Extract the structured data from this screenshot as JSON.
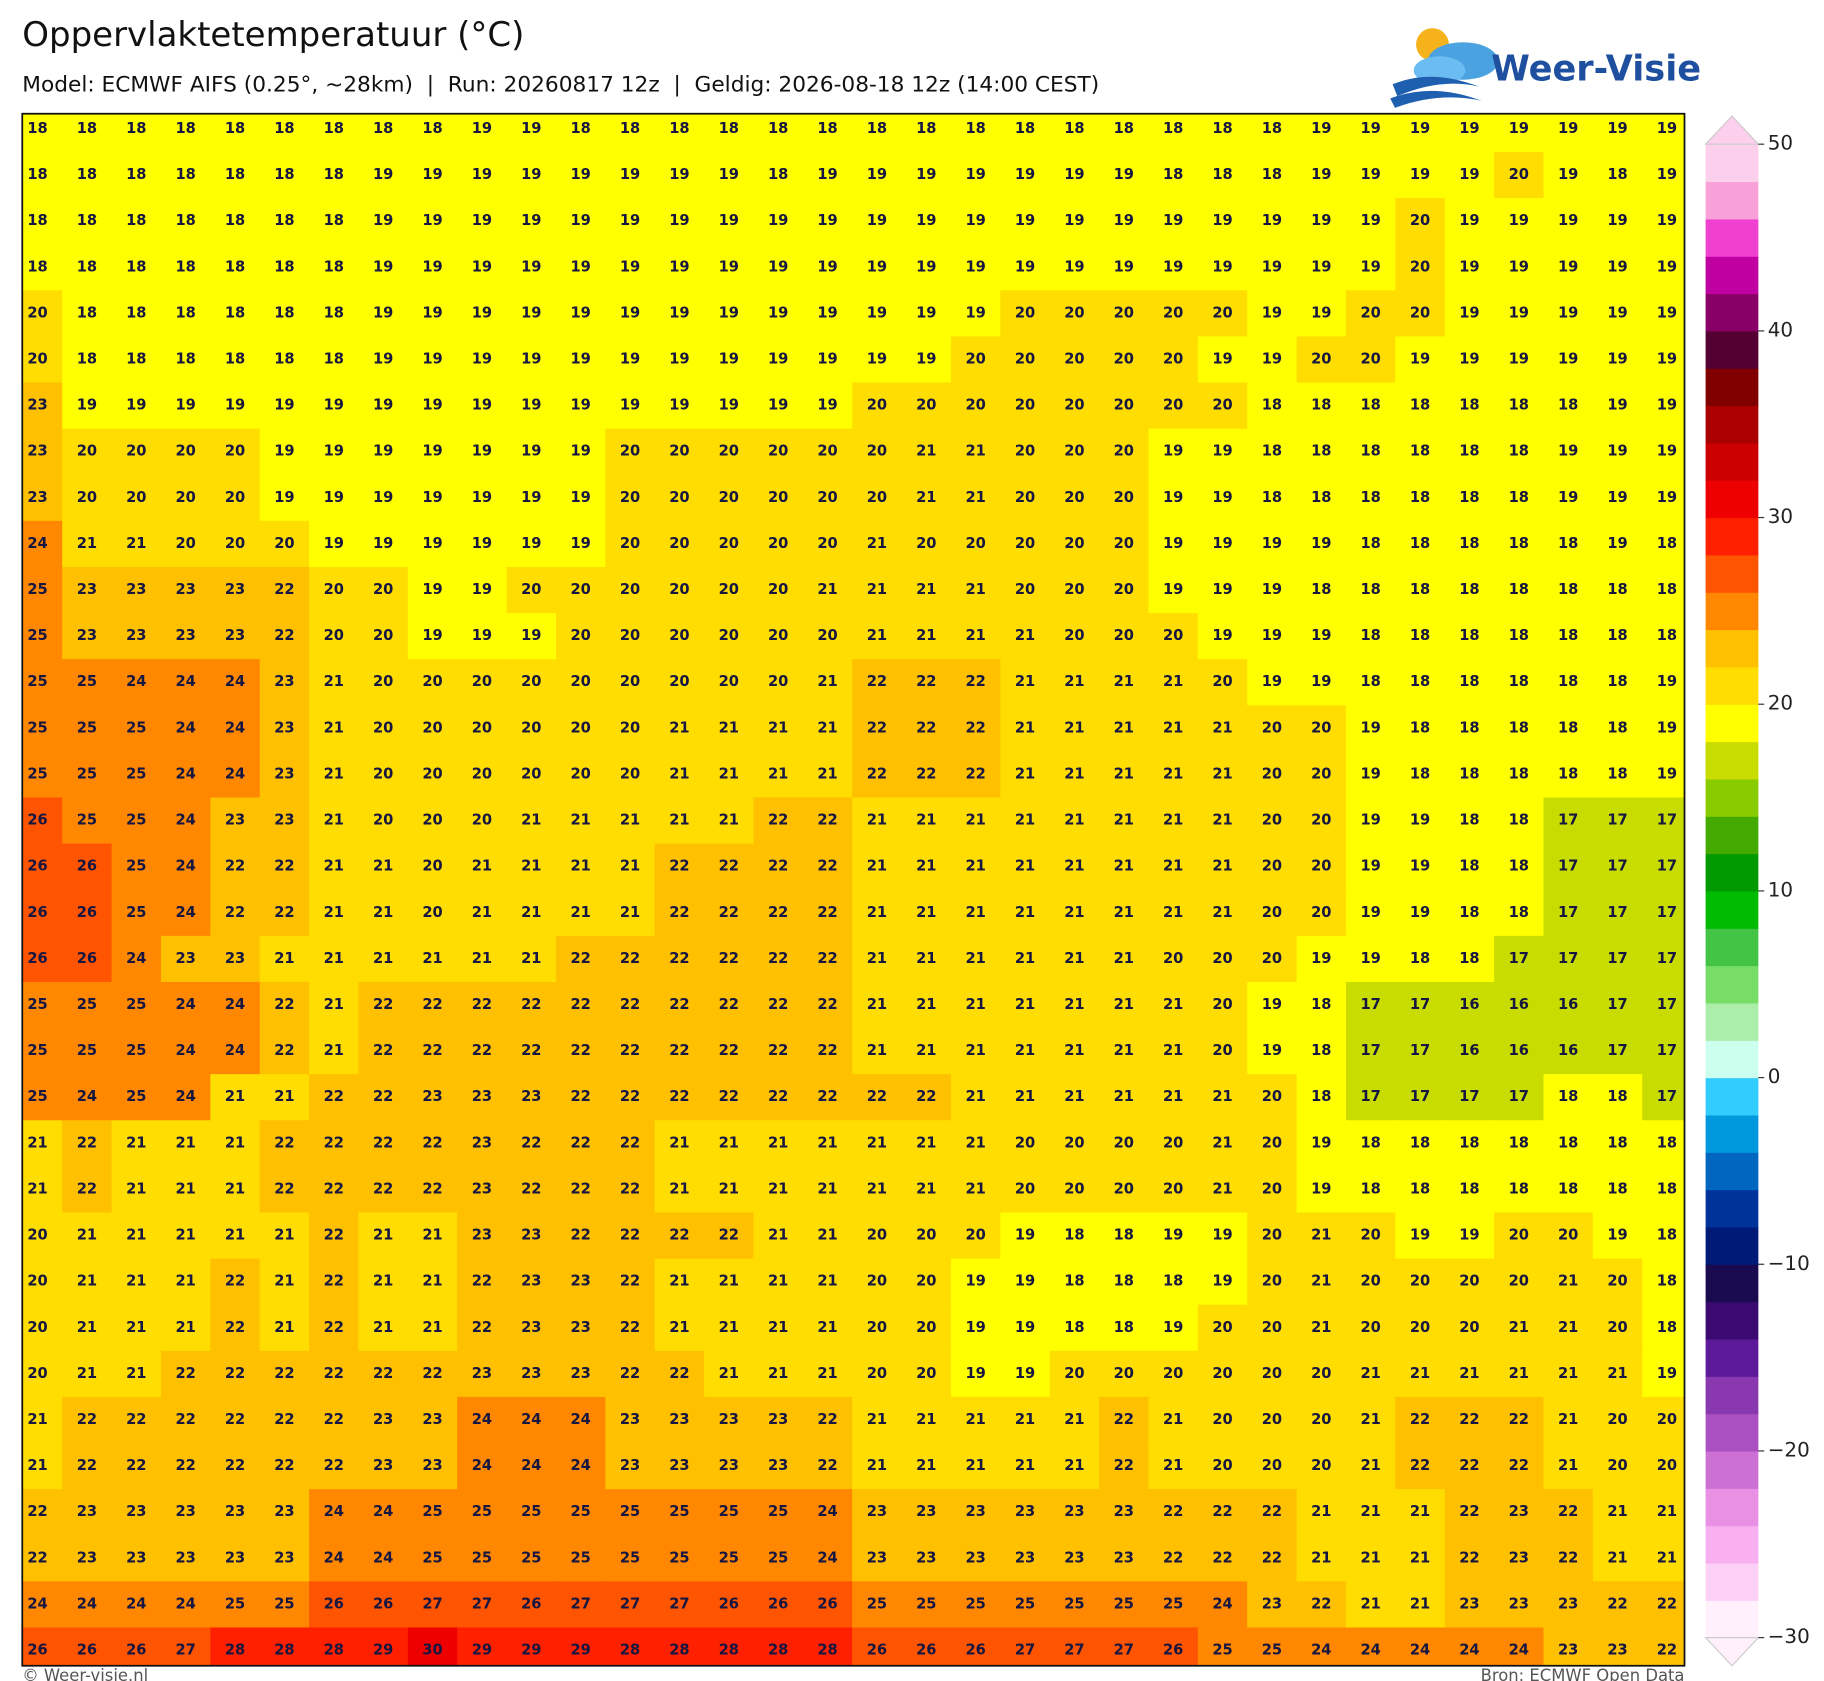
{
  "title": "Oppervlaktetemperatuur (°C)",
  "subtitle": "Model: ECMWF AIFS (0.25°, ~28km)  |  Run: 20260817 12z  |  Geldig: 2026-08-18 12z (14:00 CEST)",
  "logo": "Weer-Visie",
  "footer": {
    "left": "© Weer-visie.nl",
    "right": "Bron: ECMWF Open Data"
  },
  "map": {
    "grid": [
      [
        18,
        18,
        18,
        18,
        18,
        18,
        18,
        18,
        18,
        19,
        19,
        18,
        18,
        18,
        18,
        18,
        18,
        18,
        18,
        18,
        18,
        18,
        18,
        18,
        18,
        18,
        19,
        19,
        19,
        19,
        19,
        19,
        19,
        19
      ],
      [
        18,
        18,
        18,
        18,
        18,
        18,
        18,
        19,
        19,
        19,
        19,
        19,
        19,
        19,
        19,
        18,
        19,
        19,
        19,
        19,
        19,
        19,
        19,
        18,
        18,
        18,
        19,
        19,
        19,
        19,
        20,
        19,
        18,
        19
      ],
      [
        18,
        18,
        18,
        18,
        18,
        18,
        18,
        19,
        19,
        19,
        19,
        19,
        19,
        19,
        19,
        19,
        19,
        19,
        19,
        19,
        19,
        19,
        19,
        19,
        19,
        19,
        19,
        19,
        20,
        19,
        19,
        19,
        19,
        19
      ],
      [
        18,
        18,
        18,
        18,
        18,
        18,
        18,
        19,
        19,
        19,
        19,
        19,
        19,
        19,
        19,
        19,
        19,
        19,
        19,
        19,
        19,
        19,
        19,
        19,
        19,
        19,
        19,
        19,
        20,
        19,
        19,
        19,
        19,
        19
      ],
      [
        20,
        18,
        18,
        18,
        18,
        18,
        18,
        19,
        19,
        19,
        19,
        19,
        19,
        19,
        19,
        19,
        19,
        19,
        19,
        19,
        20,
        20,
        20,
        20,
        20,
        19,
        19,
        20,
        20,
        19,
        19,
        19,
        19,
        19
      ],
      [
        20,
        18,
        18,
        18,
        18,
        18,
        18,
        19,
        19,
        19,
        19,
        19,
        19,
        19,
        19,
        19,
        19,
        19,
        19,
        20,
        20,
        20,
        20,
        20,
        19,
        19,
        20,
        20,
        19,
        19,
        19,
        19,
        19,
        19
      ],
      [
        23,
        19,
        19,
        19,
        19,
        19,
        19,
        19,
        19,
        19,
        19,
        19,
        19,
        19,
        19,
        19,
        19,
        20,
        20,
        20,
        20,
        20,
        20,
        20,
        20,
        18,
        18,
        18,
        18,
        18,
        18,
        18,
        19,
        19
      ],
      [
        23,
        20,
        20,
        20,
        20,
        19,
        19,
        19,
        19,
        19,
        19,
        19,
        20,
        20,
        20,
        20,
        20,
        20,
        21,
        21,
        20,
        20,
        20,
        19,
        19,
        18,
        18,
        18,
        18,
        18,
        18,
        19,
        19,
        19
      ],
      [
        23,
        20,
        20,
        20,
        20,
        19,
        19,
        19,
        19,
        19,
        19,
        19,
        20,
        20,
        20,
        20,
        20,
        20,
        21,
        21,
        20,
        20,
        20,
        19,
        19,
        18,
        18,
        18,
        18,
        18,
        18,
        19,
        19,
        19
      ],
      [
        24,
        21,
        21,
        20,
        20,
        20,
        19,
        19,
        19,
        19,
        19,
        19,
        20,
        20,
        20,
        20,
        20,
        21,
        20,
        20,
        20,
        20,
        20,
        19,
        19,
        19,
        19,
        18,
        18,
        18,
        18,
        18,
        19,
        18
      ],
      [
        25,
        23,
        23,
        23,
        23,
        22,
        20,
        20,
        19,
        19,
        20,
        20,
        20,
        20,
        20,
        20,
        21,
        21,
        21,
        21,
        20,
        20,
        20,
        19,
        19,
        19,
        18,
        18,
        18,
        18,
        18,
        18,
        18,
        18
      ],
      [
        25,
        23,
        23,
        23,
        23,
        22,
        20,
        20,
        19,
        19,
        19,
        20,
        20,
        20,
        20,
        20,
        20,
        21,
        21,
        21,
        21,
        20,
        20,
        20,
        19,
        19,
        19,
        18,
        18,
        18,
        18,
        18,
        18,
        18
      ],
      [
        25,
        25,
        24,
        24,
        24,
        23,
        21,
        20,
        20,
        20,
        20,
        20,
        20,
        20,
        20,
        20,
        21,
        22,
        22,
        22,
        21,
        21,
        21,
        21,
        20,
        19,
        19,
        18,
        18,
        18,
        18,
        18,
        18,
        19
      ],
      [
        25,
        25,
        25,
        24,
        24,
        23,
        21,
        20,
        20,
        20,
        20,
        20,
        20,
        21,
        21,
        21,
        21,
        22,
        22,
        22,
        21,
        21,
        21,
        21,
        21,
        20,
        20,
        19,
        18,
        18,
        18,
        18,
        18,
        19
      ],
      [
        25,
        25,
        25,
        24,
        24,
        23,
        21,
        20,
        20,
        20,
        20,
        20,
        20,
        21,
        21,
        21,
        21,
        22,
        22,
        22,
        21,
        21,
        21,
        21,
        21,
        20,
        20,
        19,
        18,
        18,
        18,
        18,
        18,
        19
      ],
      [
        26,
        25,
        25,
        24,
        23,
        23,
        21,
        20,
        20,
        20,
        21,
        21,
        21,
        21,
        21,
        22,
        22,
        21,
        21,
        21,
        21,
        21,
        21,
        21,
        21,
        20,
        20,
        19,
        19,
        18,
        18,
        17,
        17,
        17
      ],
      [
        26,
        26,
        25,
        24,
        22,
        22,
        21,
        21,
        20,
        21,
        21,
        21,
        21,
        22,
        22,
        22,
        22,
        21,
        21,
        21,
        21,
        21,
        21,
        21,
        21,
        20,
        20,
        19,
        19,
        18,
        18,
        17,
        17,
        17
      ],
      [
        26,
        26,
        25,
        24,
        22,
        22,
        21,
        21,
        20,
        21,
        21,
        21,
        21,
        22,
        22,
        22,
        22,
        21,
        21,
        21,
        21,
        21,
        21,
        21,
        21,
        20,
        20,
        19,
        19,
        18,
        18,
        17,
        17,
        17
      ],
      [
        26,
        26,
        24,
        23,
        23,
        21,
        21,
        21,
        21,
        21,
        21,
        22,
        22,
        22,
        22,
        22,
        22,
        21,
        21,
        21,
        21,
        21,
        21,
        20,
        20,
        20,
        19,
        19,
        18,
        18,
        17,
        17,
        17,
        17
      ],
      [
        25,
        25,
        25,
        24,
        24,
        22,
        21,
        22,
        22,
        22,
        22,
        22,
        22,
        22,
        22,
        22,
        22,
        21,
        21,
        21,
        21,
        21,
        21,
        21,
        20,
        19,
        18,
        17,
        17,
        16,
        16,
        16,
        17,
        17
      ],
      [
        25,
        25,
        25,
        24,
        24,
        22,
        21,
        22,
        22,
        22,
        22,
        22,
        22,
        22,
        22,
        22,
        22,
        21,
        21,
        21,
        21,
        21,
        21,
        21,
        20,
        19,
        18,
        17,
        17,
        16,
        16,
        16,
        17,
        17
      ],
      [
        25,
        24,
        25,
        24,
        21,
        21,
        22,
        22,
        23,
        23,
        23,
        22,
        22,
        22,
        22,
        22,
        22,
        22,
        22,
        21,
        21,
        21,
        21,
        21,
        21,
        20,
        18,
        17,
        17,
        17,
        17,
        18,
        18,
        17
      ],
      [
        21,
        22,
        21,
        21,
        21,
        22,
        22,
        22,
        22,
        23,
        22,
        22,
        22,
        21,
        21,
        21,
        21,
        21,
        21,
        21,
        20,
        20,
        20,
        20,
        21,
        20,
        19,
        18,
        18,
        18,
        18,
        18,
        18,
        18
      ],
      [
        21,
        22,
        21,
        21,
        21,
        22,
        22,
        22,
        22,
        23,
        22,
        22,
        22,
        21,
        21,
        21,
        21,
        21,
        21,
        21,
        20,
        20,
        20,
        20,
        21,
        20,
        19,
        18,
        18,
        18,
        18,
        18,
        18,
        18
      ],
      [
        20,
        21,
        21,
        21,
        21,
        21,
        22,
        21,
        21,
        23,
        23,
        22,
        22,
        22,
        22,
        21,
        21,
        20,
        20,
        20,
        19,
        18,
        18,
        19,
        19,
        20,
        21,
        20,
        19,
        19,
        20,
        20,
        19,
        18
      ],
      [
        20,
        21,
        21,
        21,
        22,
        21,
        22,
        21,
        21,
        22,
        23,
        23,
        22,
        21,
        21,
        21,
        21,
        20,
        20,
        19,
        19,
        18,
        18,
        18,
        19,
        20,
        21,
        20,
        20,
        20,
        20,
        21,
        20,
        18
      ],
      [
        20,
        21,
        21,
        21,
        22,
        21,
        22,
        21,
        21,
        22,
        23,
        23,
        22,
        21,
        21,
        21,
        21,
        20,
        20,
        19,
        19,
        18,
        18,
        19,
        20,
        20,
        21,
        20,
        20,
        20,
        21,
        21,
        20,
        18
      ],
      [
        20,
        21,
        21,
        22,
        22,
        22,
        22,
        22,
        22,
        23,
        23,
        23,
        22,
        22,
        21,
        21,
        21,
        20,
        20,
        19,
        19,
        20,
        20,
        20,
        20,
        20,
        20,
        21,
        21,
        21,
        21,
        21,
        21,
        19
      ],
      [
        21,
        22,
        22,
        22,
        22,
        22,
        22,
        23,
        23,
        24,
        24,
        24,
        23,
        23,
        23,
        23,
        22,
        21,
        21,
        21,
        21,
        21,
        22,
        21,
        20,
        20,
        20,
        21,
        22,
        22,
        22,
        21,
        20,
        20
      ],
      [
        21,
        22,
        22,
        22,
        22,
        22,
        22,
        23,
        23,
        24,
        24,
        24,
        23,
        23,
        23,
        23,
        22,
        21,
        21,
        21,
        21,
        21,
        22,
        21,
        20,
        20,
        20,
        21,
        22,
        22,
        22,
        21,
        20,
        20
      ],
      [
        22,
        23,
        23,
        23,
        23,
        23,
        24,
        24,
        25,
        25,
        25,
        25,
        25,
        25,
        25,
        25,
        24,
        23,
        23,
        23,
        23,
        23,
        23,
        22,
        22,
        22,
        21,
        21,
        21,
        22,
        23,
        22,
        21,
        21
      ],
      [
        22,
        23,
        23,
        23,
        23,
        23,
        24,
        24,
        25,
        25,
        25,
        25,
        25,
        25,
        25,
        25,
        24,
        23,
        23,
        23,
        23,
        23,
        23,
        22,
        22,
        22,
        21,
        21,
        21,
        22,
        23,
        22,
        21,
        21
      ],
      [
        24,
        24,
        24,
        24,
        25,
        25,
        26,
        26,
        27,
        27,
        26,
        27,
        27,
        27,
        26,
        26,
        26,
        25,
        25,
        25,
        25,
        25,
        25,
        25,
        24,
        23,
        22,
        21,
        21,
        23,
        23,
        23,
        22,
        22
      ],
      [
        26,
        26,
        26,
        27,
        28,
        28,
        28,
        29,
        30,
        29,
        29,
        29,
        28,
        28,
        28,
        28,
        28,
        26,
        26,
        26,
        27,
        27,
        27,
        26,
        25,
        25,
        24,
        24,
        24,
        24,
        24,
        23,
        23,
        22
      ]
    ],
    "colorbar": {
      "range": [
        -30,
        50
      ],
      "ticks": [
        50,
        40,
        30,
        20,
        10,
        0,
        {
          "value": -10,
          "label": "−10"
        },
        {
          "value": -20,
          "label": "−20"
        },
        {
          "value": -30,
          "label": "−30"
        }
      ],
      "colors": [
        "#fff0fb",
        "#fdd0f8",
        "#f8b0f0",
        "#e890e4",
        "#cc70d4",
        "#aa50c0",
        "#8a38b0",
        "#5c1a99",
        "#3a0a70",
        "#1a0a50",
        "#001a77",
        "#003399",
        "#0066c0",
        "#0099dd",
        "#33ccff",
        "#ccffee",
        "#aaeeaa",
        "#77dd66",
        "#44c444",
        "#00bb00",
        "#009900",
        "#44aa00",
        "#88cc00",
        "#c8dc00",
        "#ffff00",
        "#ffdd00",
        "#ffc000",
        "#ff8800",
        "#ff5500",
        "#ff2000",
        "#ee0000",
        "#cc0000",
        "#aa0000",
        "#800000",
        "#550033",
        "#880066",
        "#c000a0",
        "#f040d0",
        "#f8a0d8",
        "#fcd0ec"
      ]
    }
  }
}
